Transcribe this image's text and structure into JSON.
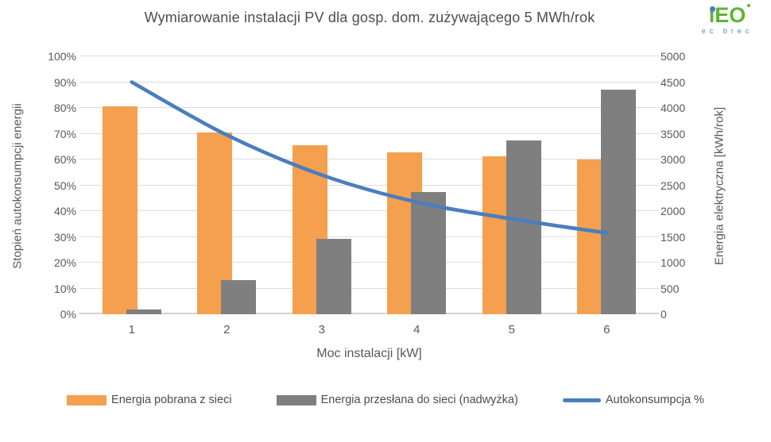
{
  "title": "Wymiarowanie instalacji PV dla gosp. dom. zużywającego 5 MWh/rok",
  "logo": {
    "text": "iEO",
    "subtext": "ec brec",
    "green": "#5cb531",
    "blue": "#3f7ec1"
  },
  "colors": {
    "orange": "#F5A04F",
    "gray": "#7F7F7F",
    "blue": "#4A7EBE",
    "gridline": "#DCDCDC",
    "text": "#595959"
  },
  "chart_data": {
    "type": "bar+line",
    "title": "Wymiarowanie instalacji PV dla gosp. dom. zużywającego 5 MWh/rok",
    "categories": [
      "1",
      "2",
      "3",
      "4",
      "5",
      "6"
    ],
    "xlabel": "Moc instalacji [kW]",
    "grid": true,
    "legend_position": "bottom",
    "left_axis": {
      "label": "Stopień autokonsumpcji energii",
      "range": [
        0,
        100
      ],
      "ticks": [
        "0%",
        "10%",
        "20%",
        "30%",
        "40%",
        "50%",
        "60%",
        "70%",
        "80%",
        "90%",
        "100%"
      ]
    },
    "right_axis": {
      "label": "Energia elektryczna [kWh/rok]",
      "range": [
        0,
        5000
      ],
      "ticks": [
        "0",
        "500",
        "1000",
        "1500",
        "2000",
        "2500",
        "3000",
        "3500",
        "4000",
        "4500",
        "5000"
      ]
    },
    "series": [
      {
        "name": "Energia pobrana z sieci",
        "type": "bar",
        "axis": "right",
        "color": "#F5A04F",
        "values": [
          4025,
          3530,
          3275,
          3145,
          3060,
          3000
        ]
      },
      {
        "name": "Energia przesłana do sieci (nadwyżka)",
        "type": "bar",
        "axis": "right",
        "color": "#7F7F7F",
        "values": [
          100,
          655,
          1455,
          2370,
          3370,
          4360
        ]
      },
      {
        "name": "Autokonsumpcja %",
        "type": "line",
        "axis": "left",
        "color": "#4A7EBE",
        "values": [
          90,
          69.5,
          54,
          43.5,
          37,
          31.5
        ]
      }
    ]
  }
}
